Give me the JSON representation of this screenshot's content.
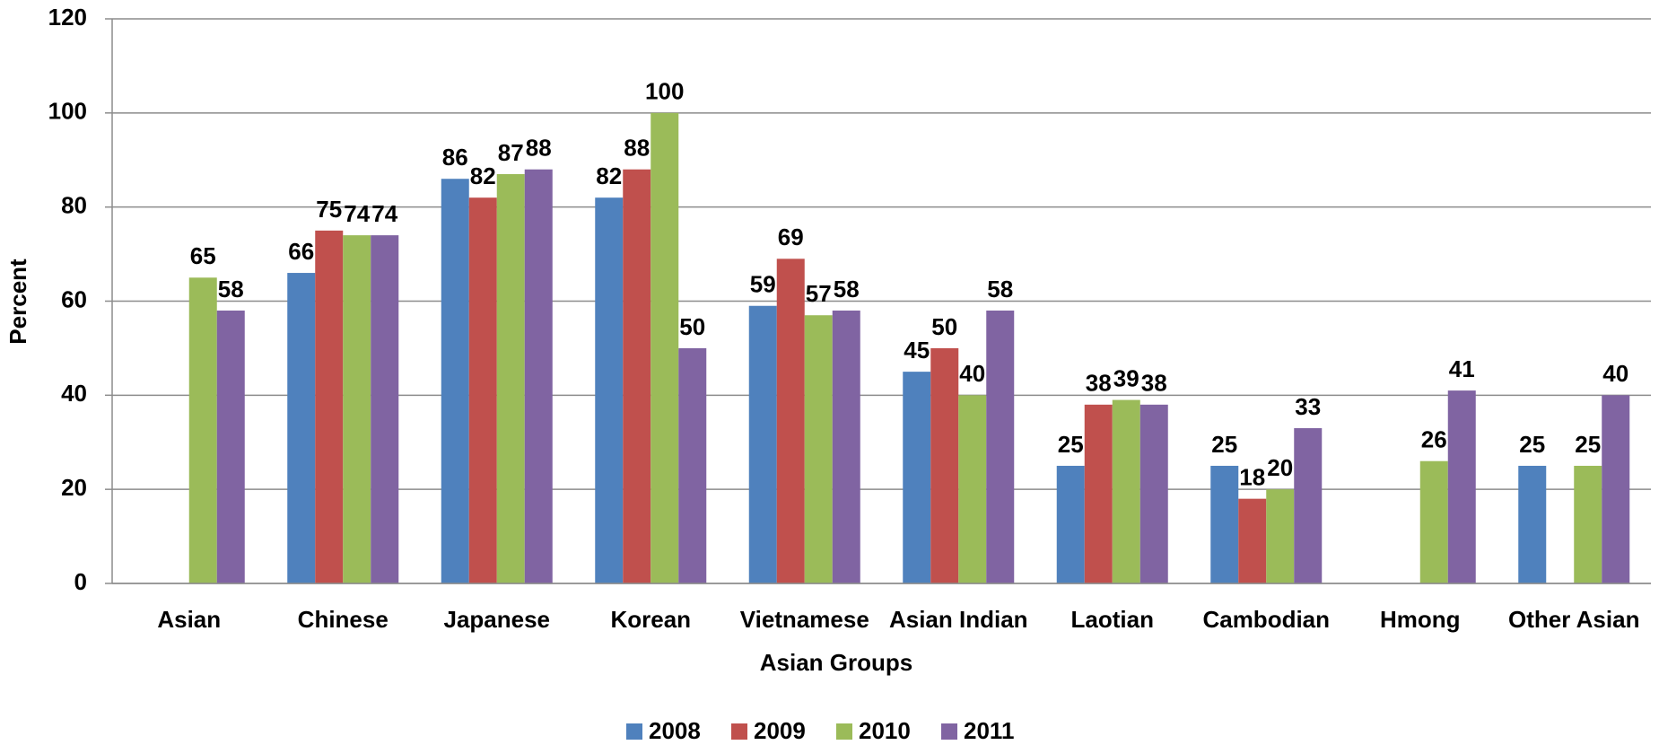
{
  "chart_data": {
    "type": "bar",
    "categories": [
      "Asian",
      "Chinese",
      "Japanese",
      "Korean",
      "Vietnamese",
      "Asian Indian",
      "Laotian",
      "Cambodian",
      "Hmong",
      "Other Asian"
    ],
    "series": [
      {
        "name": "2008",
        "color": "#4f81bd",
        "values": [
          null,
          66,
          86,
          82,
          59,
          45,
          25,
          25,
          null,
          25
        ]
      },
      {
        "name": "2009",
        "color": "#c0504d",
        "values": [
          null,
          75,
          82,
          88,
          69,
          50,
          38,
          18,
          null,
          null
        ]
      },
      {
        "name": "2010",
        "color": "#9bbb59",
        "values": [
          65,
          74,
          87,
          100,
          57,
          40,
          39,
          20,
          26,
          25
        ]
      },
      {
        "name": "2011",
        "color": "#8064a2",
        "values": [
          58,
          74,
          88,
          50,
          58,
          58,
          38,
          33,
          41,
          40
        ]
      }
    ],
    "xlabel": "Asian Groups",
    "ylabel": "Percent",
    "ylim": [
      0,
      120
    ],
    "yticks": [
      0,
      20,
      40,
      60,
      80,
      100,
      120
    ],
    "grid": true,
    "legend": "bottom"
  }
}
